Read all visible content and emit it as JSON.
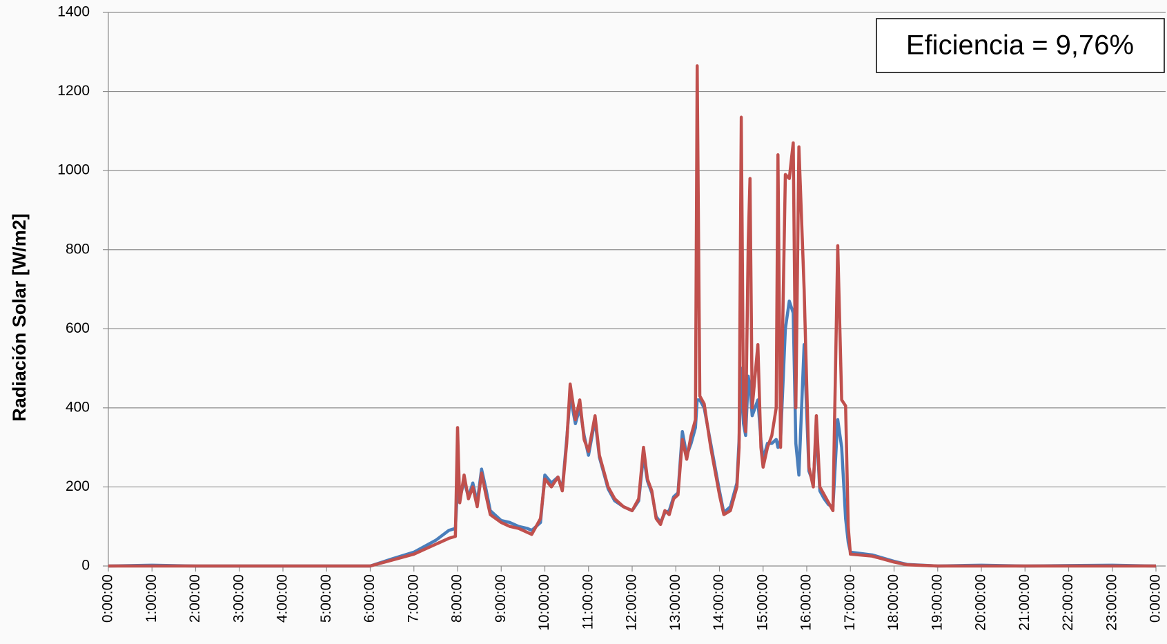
{
  "chart_data": {
    "type": "line",
    "y_label": "Radiación Solar [W/m2]",
    "annotation": "Eficiencia = 9,76%",
    "x": [
      0,
      1,
      2,
      3,
      4,
      5,
      6,
      6.5,
      7,
      7.5,
      7.8,
      7.95,
      8,
      8.05,
      8.15,
      8.25,
      8.35,
      8.45,
      8.55,
      8.65,
      8.75,
      9,
      9.2,
      9.4,
      9.6,
      9.7,
      9.9,
      10,
      10.15,
      10.3,
      10.4,
      10.5,
      10.58,
      10.7,
      10.8,
      10.9,
      11,
      11.15,
      11.25,
      11.35,
      11.45,
      11.6,
      11.8,
      12,
      12.15,
      12.26,
      12.35,
      12.45,
      12.55,
      12.65,
      12.75,
      12.85,
      12.95,
      13.05,
      13.15,
      13.25,
      13.35,
      13.45,
      13.49,
      13.55,
      13.65,
      13.8,
      14,
      14.1,
      14.25,
      14.4,
      14.45,
      14.5,
      14.55,
      14.6,
      14.66,
      14.7,
      14.75,
      14.88,
      14.95,
      15,
      15.1,
      15.2,
      15.3,
      15.34,
      15.4,
      15.51,
      15.6,
      15.69,
      15.75,
      15.82,
      15.94,
      16.05,
      16.15,
      16.22,
      16.3,
      16.4,
      16.5,
      16.6,
      16.71,
      16.8,
      16.89,
      16.95,
      17,
      17.5,
      18,
      18.3,
      19,
      20,
      21,
      22,
      23,
      24
    ],
    "series": [
      {
        "color": "#4a7ebb",
        "values": [
          0,
          2,
          0,
          0,
          0,
          0,
          0,
          18,
          35,
          65,
          90,
          95,
          200,
          170,
          215,
          175,
          210,
          160,
          245,
          195,
          140,
          115,
          110,
          100,
          95,
          90,
          110,
          230,
          210,
          225,
          195,
          320,
          430,
          360,
          400,
          330,
          280,
          370,
          275,
          235,
          195,
          165,
          150,
          140,
          165,
          280,
          215,
          185,
          125,
          110,
          135,
          140,
          175,
          185,
          340,
          280,
          310,
          350,
          420,
          420,
          400,
          310,
          190,
          135,
          150,
          210,
          320,
          500,
          360,
          330,
          480,
          450,
          380,
          420,
          320,
          270,
          310,
          310,
          320,
          300,
          320,
          600,
          670,
          640,
          310,
          230,
          560,
          240,
          210,
          350,
          190,
          170,
          155,
          150,
          370,
          300,
          120,
          60,
          35,
          28,
          12,
          4,
          0,
          2,
          0,
          1,
          2,
          0
        ]
      },
      {
        "color": "#c0504d",
        "values": [
          0,
          0,
          0,
          0,
          0,
          0,
          0,
          15,
          30,
          55,
          70,
          75,
          350,
          160,
          230,
          170,
          200,
          150,
          235,
          180,
          130,
          110,
          100,
          95,
          85,
          80,
          120,
          220,
          200,
          225,
          190,
          310,
          460,
          370,
          420,
          320,
          290,
          380,
          280,
          240,
          200,
          170,
          150,
          140,
          170,
          300,
          220,
          190,
          120,
          105,
          140,
          130,
          170,
          180,
          320,
          270,
          330,
          370,
          1265,
          430,
          410,
          300,
          180,
          130,
          140,
          200,
          300,
          1135,
          400,
          340,
          820,
          980,
          400,
          560,
          300,
          250,
          300,
          330,
          400,
          1040,
          300,
          990,
          980,
          1070,
          400,
          1060,
          700,
          250,
          200,
          380,
          200,
          180,
          160,
          140,
          810,
          420,
          405,
          100,
          30,
          25,
          10,
          3,
          0,
          0,
          0,
          0,
          0,
          0
        ]
      }
    ],
    "xlim": [
      0,
      24
    ],
    "xticks": [
      {
        "value": 0,
        "label": "0:00:00"
      },
      {
        "value": 1,
        "label": "1:00:00"
      },
      {
        "value": 2,
        "label": "2:00:00"
      },
      {
        "value": 3,
        "label": "3:00:00"
      },
      {
        "value": 4,
        "label": "4:00:00"
      },
      {
        "value": 5,
        "label": "5:00:00"
      },
      {
        "value": 6,
        "label": "6:00:00"
      },
      {
        "value": 7,
        "label": "7:00:00"
      },
      {
        "value": 8,
        "label": "8:00:00"
      },
      {
        "value": 9,
        "label": "9:00:00"
      },
      {
        "value": 10,
        "label": "10:00:00"
      },
      {
        "value": 11,
        "label": "11:00:00"
      },
      {
        "value": 12,
        "label": "12:00:00"
      },
      {
        "value": 13,
        "label": "13:00:00"
      },
      {
        "value": 14,
        "label": "14:00:00"
      },
      {
        "value": 15,
        "label": "15:00:00"
      },
      {
        "value": 16,
        "label": "16:00:00"
      },
      {
        "value": 17,
        "label": "17:00:00"
      },
      {
        "value": 18,
        "label": "18:00:00"
      },
      {
        "value": 19,
        "label": "19:00:00"
      },
      {
        "value": 20,
        "label": "20:00:00"
      },
      {
        "value": 21,
        "label": "21:00:00"
      },
      {
        "value": 22,
        "label": "22:00:00"
      },
      {
        "value": 23,
        "label": "23:00:00"
      },
      {
        "value": 24,
        "label": "0:00:00"
      }
    ],
    "ylim": [
      0,
      1400
    ],
    "yticks": [
      0,
      200,
      400,
      600,
      800,
      1000,
      1200,
      1400
    ],
    "grid": true
  }
}
